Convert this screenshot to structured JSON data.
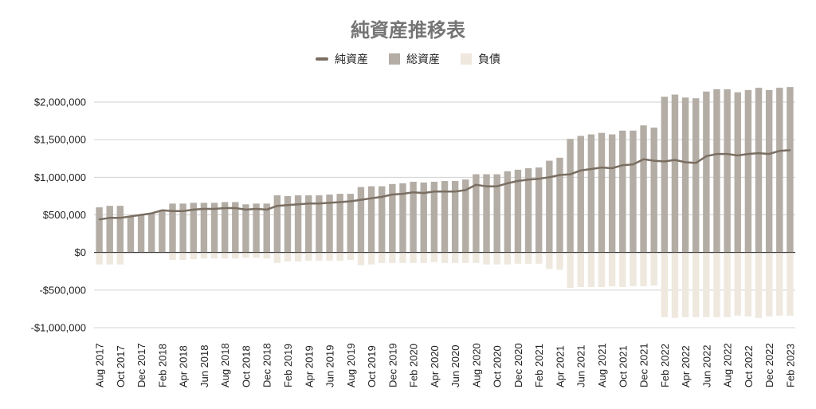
{
  "chart_data": {
    "type": "bar",
    "title": "純資産推移表",
    "legend_position": "top",
    "grid": true,
    "ylim": [
      -1000000,
      2000000
    ],
    "yticks": [
      2000000,
      1500000,
      1000000,
      500000,
      0,
      -500000,
      -1000000
    ],
    "ytick_labels": [
      "$2,000,000",
      "$1,500,000",
      "$1,000,000",
      "$500,000",
      "$0",
      "-$500,000",
      "-$1,000,000"
    ],
    "x": [
      "Aug 2017",
      "Sep 2017",
      "Oct 2017",
      "Nov 2017",
      "Dec 2017",
      "Jan 2018",
      "Feb 2018",
      "Mar 2018",
      "Apr 2018",
      "May 2018",
      "Jun 2018",
      "Jul 2018",
      "Aug 2018",
      "Sep 2018",
      "Oct 2018",
      "Nov 2018",
      "Dec 2018",
      "Jan 2019",
      "Feb 2019",
      "Mar 2019",
      "Apr 2019",
      "May 2019",
      "Jun 2019",
      "Jul 2019",
      "Aug 2019",
      "Sep 2019",
      "Oct 2019",
      "Nov 2019",
      "Dec 2019",
      "Jan 2020",
      "Feb 2020",
      "Mar 2020",
      "Apr 2020",
      "May 2020",
      "Jun 2020",
      "Jul 2020",
      "Aug 2020",
      "Sep 2020",
      "Oct 2020",
      "Nov 2020",
      "Dec 2020",
      "Jan 2021",
      "Feb 2021",
      "Mar 2021",
      "Apr 2021",
      "May 2021",
      "Jun 2021",
      "Jul 2021",
      "Aug 2021",
      "Sep 2021",
      "Oct 2021",
      "Nov 2021",
      "Dec 2021",
      "Jan 2022",
      "Feb 2022",
      "Mar 2022",
      "Apr 2022",
      "May 2022",
      "Jun 2022",
      "Jul 2022",
      "Aug 2022",
      "Sep 2022",
      "Oct 2022",
      "Nov 2022",
      "Dec 2022",
      "Jan 2023",
      "Feb 2023"
    ],
    "x_tick_labels": [
      "Aug 2017",
      "",
      "Oct 2017",
      "",
      "Dec 2017",
      "",
      "Feb 2018",
      "",
      "Apr 2018",
      "",
      "Jun 2018",
      "",
      "Aug 2018",
      "",
      "Oct 2018",
      "",
      "Dec 2018",
      "",
      "Feb 2019",
      "",
      "Apr 2019",
      "",
      "Jun 2019",
      "",
      "Aug 2019",
      "",
      "Oct 2019",
      "",
      "Dec 2019",
      "",
      "Feb 2020",
      "",
      "Apr 2020",
      "",
      "Jun 2020",
      "",
      "Aug 2020",
      "",
      "Oct 2020",
      "",
      "Dec 2020",
      "",
      "Feb 2021",
      "",
      "Apr 2021",
      "",
      "Jun 2021",
      "",
      "Aug 2021",
      "",
      "Oct 2021",
      "",
      "Dec 2021",
      "",
      "Feb 2022",
      "",
      "Apr 2022",
      "",
      "Jun 2022",
      "",
      "Aug 2022",
      "",
      "Oct 2022",
      "",
      "Dec 2022",
      "",
      "Feb 2023"
    ],
    "series": [
      {
        "name": "純資産",
        "type": "line",
        "color": "#7a6e62",
        "values": [
          440000,
          460000,
          460000,
          480000,
          500000,
          520000,
          560000,
          550000,
          550000,
          570000,
          580000,
          580000,
          590000,
          590000,
          570000,
          580000,
          570000,
          620000,
          630000,
          640000,
          650000,
          650000,
          660000,
          670000,
          680000,
          700000,
          720000,
          740000,
          770000,
          780000,
          800000,
          790000,
          810000,
          810000,
          810000,
          830000,
          900000,
          880000,
          880000,
          920000,
          950000,
          970000,
          980000,
          1000000,
          1030000,
          1040000,
          1090000,
          1110000,
          1130000,
          1120000,
          1160000,
          1170000,
          1240000,
          1220000,
          1210000,
          1230000,
          1200000,
          1190000,
          1280000,
          1310000,
          1310000,
          1290000,
          1310000,
          1320000,
          1310000,
          1350000,
          1360000
        ]
      },
      {
        "name": "総資産",
        "type": "bar",
        "color": "#b3ada5",
        "values": [
          600000,
          620000,
          620000,
          480000,
          500000,
          520000,
          560000,
          650000,
          650000,
          660000,
          660000,
          660000,
          670000,
          670000,
          640000,
          650000,
          650000,
          760000,
          750000,
          760000,
          760000,
          760000,
          770000,
          780000,
          780000,
          870000,
          880000,
          880000,
          910000,
          920000,
          940000,
          930000,
          940000,
          950000,
          950000,
          970000,
          1040000,
          1040000,
          1040000,
          1080000,
          1100000,
          1120000,
          1130000,
          1220000,
          1260000,
          1510000,
          1550000,
          1570000,
          1590000,
          1570000,
          1620000,
          1620000,
          1690000,
          1660000,
          2070000,
          2100000,
          2060000,
          2050000,
          2140000,
          2170000,
          2170000,
          2130000,
          2160000,
          2190000,
          2160000,
          2190000,
          2200000
        ]
      },
      {
        "name": "負債",
        "type": "bar",
        "color": "#efe8de",
        "values": [
          -160000,
          -160000,
          -160000,
          0,
          0,
          0,
          0,
          -100000,
          -100000,
          -90000,
          -80000,
          -80000,
          -80000,
          -80000,
          -70000,
          -70000,
          -80000,
          -140000,
          -120000,
          -120000,
          -110000,
          -110000,
          -110000,
          -110000,
          -100000,
          -170000,
          -160000,
          -140000,
          -140000,
          -140000,
          -140000,
          -140000,
          -130000,
          -140000,
          -140000,
          -140000,
          -140000,
          -160000,
          -160000,
          -160000,
          -150000,
          -150000,
          -150000,
          -220000,
          -230000,
          -470000,
          -460000,
          -460000,
          -460000,
          -450000,
          -460000,
          -450000,
          -450000,
          -440000,
          -860000,
          -870000,
          -860000,
          -860000,
          -860000,
          -860000,
          -860000,
          -840000,
          -850000,
          -870000,
          -850000,
          -840000,
          -840000
        ]
      }
    ]
  }
}
